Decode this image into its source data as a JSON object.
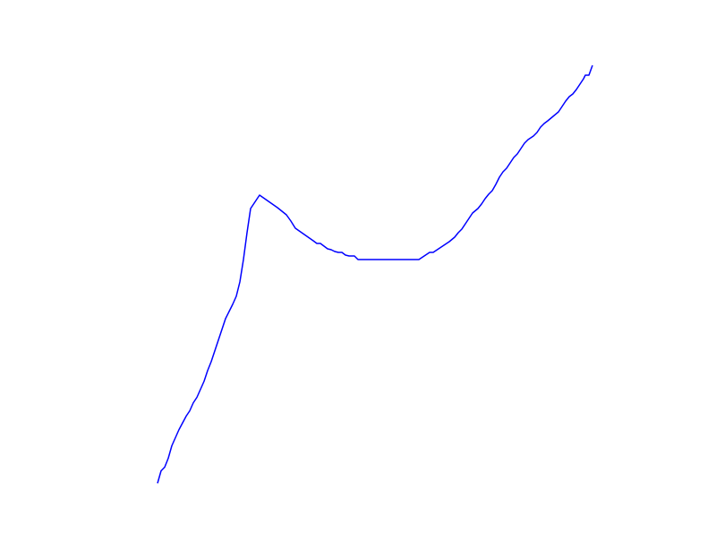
{
  "chart_data": {
    "type": "line",
    "x": [
      0,
      4,
      8,
      12,
      16,
      24,
      32,
      36,
      40,
      44,
      48,
      52,
      56,
      60,
      64,
      68,
      72,
      76,
      80,
      84,
      88,
      92,
      96,
      100,
      104,
      110,
      114,
      124,
      134,
      144,
      149,
      154,
      164,
      174,
      178,
      182,
      186,
      190,
      194,
      198,
      202,
      206,
      210,
      214,
      220,
      224,
      292,
      298,
      304,
      308,
      314,
      320,
      326,
      332,
      336,
      340,
      344,
      348,
      352,
      358,
      362,
      366,
      370,
      374,
      378,
      382,
      386,
      390,
      394,
      398,
      402,
      406,
      410,
      414,
      420,
      424,
      428,
      432,
      436,
      442,
      448,
      452,
      456,
      460,
      464,
      468,
      472,
      476,
      478,
      482,
      486
    ],
    "series": [
      {
        "color": "#0000ff",
        "values": [
          0,
          14,
          18,
          28,
          42,
          60,
          75,
          81,
          90,
          96,
          105,
          114,
          126,
          136,
          148,
          160,
          172,
          184,
          192,
          200,
          209,
          225,
          250,
          280,
          307,
          316,
          322,
          315,
          308,
          300,
          293,
          285,
          278,
          271,
          268,
          268,
          265,
          262,
          261,
          259,
          258,
          258,
          255,
          254,
          254,
          250,
          250,
          254,
          258,
          258,
          262,
          266,
          270,
          275,
          280,
          284,
          290,
          296,
          302,
          307,
          312,
          318,
          323,
          327,
          334,
          342,
          348,
          352,
          358,
          364,
          368,
          374,
          380,
          384,
          388,
          392,
          398,
          402,
          405,
          410,
          415,
          421,
          427,
          432,
          435,
          440,
          446,
          452,
          456,
          456,
          467
        ]
      }
    ],
    "xlim": [
      0,
      486
    ],
    "ylim": [
      0,
      467
    ]
  }
}
